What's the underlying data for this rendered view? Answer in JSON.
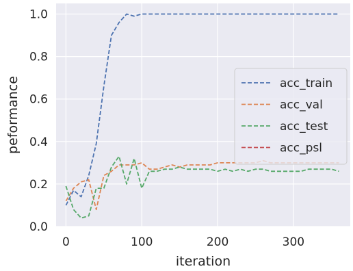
{
  "chart_data": {
    "type": "line",
    "xlabel": "iteration",
    "ylabel": "peformance",
    "xlim": [
      -13,
      375
    ],
    "ylim": [
      0.0,
      1.05
    ],
    "xticks": [
      0,
      100,
      200,
      300
    ],
    "yticks": [
      0.0,
      0.2,
      0.4,
      0.6,
      0.8,
      1.0
    ],
    "xtick_labels": [
      "0",
      "100",
      "200",
      "300"
    ],
    "ytick_labels": [
      "0.0",
      "0.2",
      "0.4",
      "0.6",
      "0.8",
      "1.0"
    ],
    "grid": true,
    "legend_position": "center-right",
    "background": "#eaeaf2",
    "series": [
      {
        "name": "acc_train",
        "color": "#4c72b0",
        "x": [
          0,
          10,
          20,
          30,
          40,
          50,
          60,
          70,
          80,
          90,
          100,
          110,
          120,
          130,
          140,
          150,
          160,
          170,
          180,
          190,
          200,
          210,
          220,
          230,
          240,
          250,
          260,
          270,
          280,
          290,
          300,
          310,
          320,
          330,
          340,
          350,
          360
        ],
        "y": [
          0.1,
          0.17,
          0.14,
          0.24,
          0.39,
          0.66,
          0.9,
          0.96,
          1.0,
          0.99,
          1.0,
          1.0,
          1.0,
          1.0,
          1.0,
          1.0,
          1.0,
          1.0,
          1.0,
          1.0,
          1.0,
          1.0,
          1.0,
          1.0,
          1.0,
          1.0,
          1.0,
          1.0,
          1.0,
          1.0,
          1.0,
          1.0,
          1.0,
          1.0,
          1.0,
          1.0,
          1.0
        ]
      },
      {
        "name": "acc_val",
        "color": "#dd8452",
        "x": [
          0,
          10,
          20,
          30,
          40,
          50,
          60,
          70,
          80,
          90,
          100,
          110,
          120,
          130,
          140,
          150,
          160,
          170,
          180,
          190,
          200,
          210,
          220,
          230,
          240,
          250,
          260,
          270,
          280,
          290,
          300,
          310,
          320,
          330,
          340,
          350,
          360
        ],
        "y": [
          0.12,
          0.18,
          0.21,
          0.22,
          0.08,
          0.24,
          0.26,
          0.29,
          0.29,
          0.29,
          0.3,
          0.27,
          0.27,
          0.28,
          0.29,
          0.28,
          0.29,
          0.29,
          0.29,
          0.29,
          0.3,
          0.3,
          0.3,
          0.3,
          0.3,
          0.3,
          0.31,
          0.3,
          0.3,
          0.3,
          0.3,
          0.3,
          0.3,
          0.3,
          0.3,
          0.3,
          0.3
        ]
      },
      {
        "name": "acc_test",
        "color": "#55a868",
        "x": [
          0,
          10,
          20,
          30,
          40,
          50,
          60,
          70,
          80,
          90,
          100,
          110,
          120,
          130,
          140,
          150,
          160,
          170,
          180,
          190,
          200,
          210,
          220,
          230,
          240,
          250,
          260,
          270,
          280,
          290,
          300,
          310,
          320,
          330,
          340,
          350,
          360
        ],
        "y": [
          0.19,
          0.08,
          0.04,
          0.05,
          0.18,
          0.18,
          0.28,
          0.33,
          0.2,
          0.32,
          0.18,
          0.26,
          0.26,
          0.27,
          0.27,
          0.28,
          0.27,
          0.27,
          0.27,
          0.27,
          0.26,
          0.27,
          0.26,
          0.27,
          0.26,
          0.27,
          0.27,
          0.26,
          0.26,
          0.26,
          0.26,
          0.26,
          0.27,
          0.27,
          0.27,
          0.27,
          0.26
        ]
      },
      {
        "name": "acc_psl",
        "color": "#c44e52",
        "x": [],
        "y": []
      }
    ]
  }
}
